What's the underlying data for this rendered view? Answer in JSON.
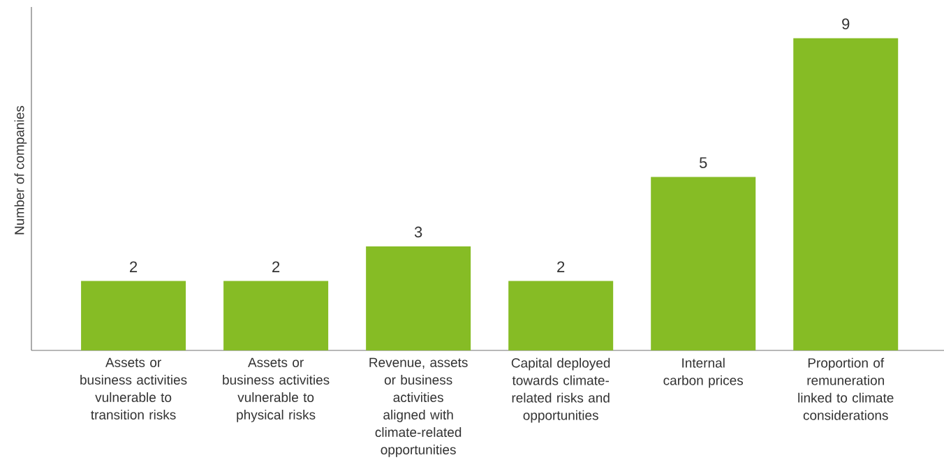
{
  "chart_data": {
    "type": "bar",
    "ylabel": "Number  of companies",
    "categories": [
      "Assets or business activities vulnerable to transition risks",
      "Assets or business activities vulnerable to physical risks",
      "Revenue, assets or business activities aligned with climate-related opportunities",
      "Capital deployed towards climate-related risks and opportunities",
      "Internal carbon prices",
      "Proportion of remuneration linked to climate considerations"
    ],
    "values": [
      2,
      2,
      3,
      2,
      5,
      9
    ],
    "color": "#86bc25",
    "data_labels": true
  }
}
